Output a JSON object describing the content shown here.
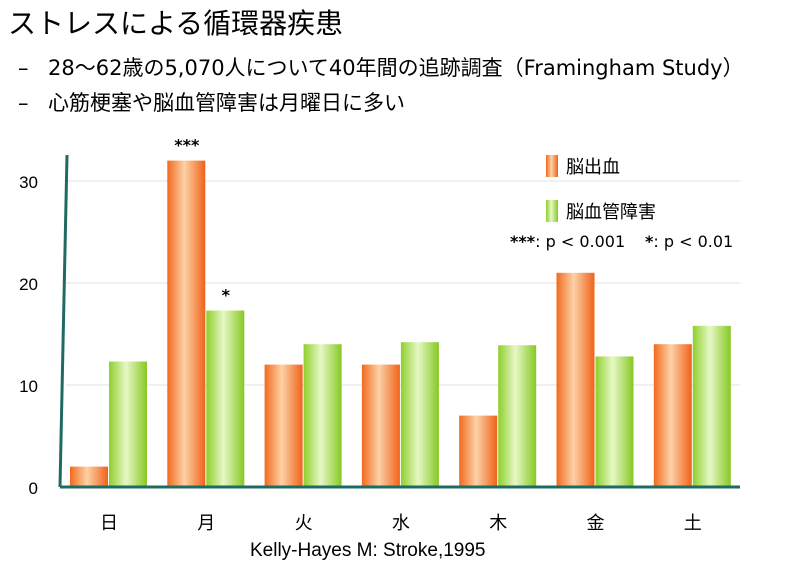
{
  "slide": {
    "title": "ストレスによる循環器疾患",
    "bullets": [
      "28〜62歳の5,070人について40年間の追跡調査（Framingham Study）",
      "心筋梗塞や脳血管障害は月曜日に多い"
    ],
    "source": "Kelly-Hayes M: Stroke,1995"
  },
  "chart_data": {
    "type": "bar",
    "categories": [
      "日",
      "月",
      "火",
      "水",
      "木",
      "金",
      "土"
    ],
    "series": [
      {
        "name": "脳出血",
        "values": [
          2,
          32,
          12,
          12,
          7,
          21,
          14
        ],
        "color": "#f0641e"
      },
      {
        "name": "脳血管障害",
        "values": [
          12.3,
          17.3,
          14,
          14.2,
          13.9,
          12.8,
          15.8
        ],
        "color": "#8ccc28"
      }
    ],
    "ylim": [
      0,
      30
    ],
    "yticks": [
      0,
      10,
      20,
      30
    ],
    "grid": true,
    "legend_position": "top-right",
    "significance_marks": [
      {
        "category": "月",
        "series": "脳出血",
        "mark": "***"
      },
      {
        "category": "月",
        "series": "脳血管障害",
        "mark": "*"
      }
    ],
    "significance_legend": [
      {
        "mark": "***",
        "text": ": p < 0.001"
      },
      {
        "mark": "*",
        "text": ": p < 0.01"
      }
    ]
  }
}
